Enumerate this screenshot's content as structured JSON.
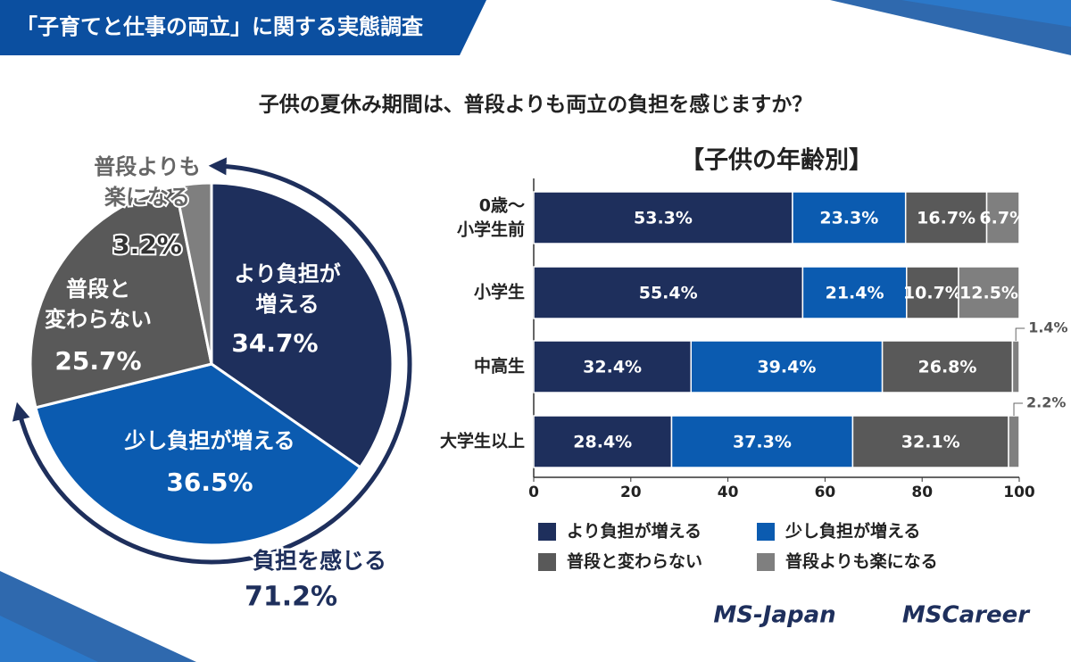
{
  "header": {
    "banner": "「子育てと仕事の両立」に関する実態調査",
    "question": "子供の夏休み期間は、普段よりも両立の負担を感じますか？"
  },
  "footer": {
    "logos": [
      "MS-Japan",
      "MSCareer"
    ]
  },
  "chart_data": [
    {
      "type": "pie",
      "categories": [
        "より負担が増える",
        "少し負担が増える",
        "普段と変わらない",
        "普段よりも楽になる"
      ],
      "values": [
        34.7,
        36.5,
        25.7,
        3.2
      ],
      "value_labels": [
        "34.7%",
        "36.5%",
        "25.7%",
        "3.2%"
      ],
      "colors": [
        "#1e2f5c",
        "#0b5bb0",
        "#595959",
        "#7f7f7f"
      ],
      "annotation": {
        "label": "負担を感じる",
        "value": 71.2,
        "value_label": "71.2%"
      }
    },
    {
      "type": "stacked_barh",
      "title": "【子供の年齢別】",
      "categories": [
        "0歳〜小学生前",
        "小学生",
        "中高生",
        "大学生以上"
      ],
      "series": [
        {
          "name": "より負担が増える",
          "color": "#1e2f5c",
          "values": [
            53.3,
            55.4,
            32.4,
            28.4
          ],
          "value_labels": [
            "53.3%",
            "55.4%",
            "32.4%",
            "28.4%"
          ]
        },
        {
          "name": "少し負担が増える",
          "color": "#0b5bb0",
          "values": [
            23.3,
            21.4,
            39.4,
            37.3
          ],
          "value_labels": [
            "23.3%",
            "21.4%",
            "39.4%",
            "37.3%"
          ]
        },
        {
          "name": "普段と変わらない",
          "color": "#595959",
          "values": [
            16.7,
            10.7,
            26.8,
            32.1
          ],
          "value_labels": [
            "16.7%",
            "10.7%",
            "26.8%",
            "32.1%"
          ]
        },
        {
          "name": "普段よりも楽になる",
          "color": "#7f7f7f",
          "values": [
            6.7,
            12.5,
            1.4,
            2.2
          ],
          "value_labels": [
            "6.7%",
            "12.5%",
            "1.4%",
            "2.2%"
          ]
        }
      ],
      "xlim": [
        0,
        100
      ],
      "xticks": [
        0,
        20,
        40,
        60,
        80,
        100
      ]
    }
  ]
}
